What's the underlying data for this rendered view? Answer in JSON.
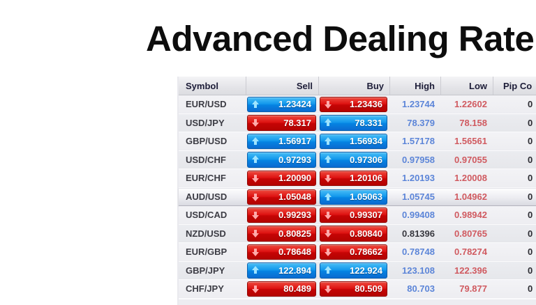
{
  "page": {
    "title": "Advanced Dealing Rate",
    "background": "#ffffff"
  },
  "table": {
    "headers": {
      "symbol": "Symbol",
      "sell": "Sell",
      "buy": "Buy",
      "high": "High",
      "low": "Low",
      "pip": "Pip Co"
    },
    "rows": [
      {
        "symbol": "EUR/USD",
        "sell": "1.23424",
        "sell_dir": "up",
        "buy": "1.23436",
        "buy_dir": "down",
        "high": "1.23744",
        "high_variant": "blue",
        "low": "1.22602",
        "pip": "0",
        "highlighted": false
      },
      {
        "symbol": "USD/JPY",
        "sell": "78.317",
        "sell_dir": "down",
        "buy": "78.331",
        "buy_dir": "up",
        "high": "78.379",
        "high_variant": "blue",
        "low": "78.158",
        "pip": "0",
        "highlighted": false
      },
      {
        "symbol": "GBP/USD",
        "sell": "1.56917",
        "sell_dir": "up",
        "buy": "1.56934",
        "buy_dir": "up",
        "high": "1.57178",
        "high_variant": "blue",
        "low": "1.56561",
        "pip": "0",
        "highlighted": false
      },
      {
        "symbol": "USD/CHF",
        "sell": "0.97293",
        "sell_dir": "up",
        "buy": "0.97306",
        "buy_dir": "up",
        "high": "0.97958",
        "high_variant": "blue",
        "low": "0.97055",
        "pip": "0",
        "highlighted": false
      },
      {
        "symbol": "EUR/CHF",
        "sell": "1.20090",
        "sell_dir": "down",
        "buy": "1.20106",
        "buy_dir": "down",
        "high": "1.20193",
        "high_variant": "blue",
        "low": "1.20008",
        "pip": "0",
        "highlighted": false
      },
      {
        "symbol": "AUD/USD",
        "sell": "1.05048",
        "sell_dir": "down",
        "buy": "1.05063",
        "buy_dir": "up",
        "high": "1.05745",
        "high_variant": "blue",
        "low": "1.04962",
        "pip": "0",
        "highlighted": true
      },
      {
        "symbol": "USD/CAD",
        "sell": "0.99293",
        "sell_dir": "down",
        "buy": "0.99307",
        "buy_dir": "down",
        "high": "0.99408",
        "high_variant": "blue",
        "low": "0.98942",
        "pip": "0",
        "highlighted": false
      },
      {
        "symbol": "NZD/USD",
        "sell": "0.80825",
        "sell_dir": "down",
        "buy": "0.80840",
        "buy_dir": "down",
        "high": "0.81396",
        "high_variant": "dark",
        "low": "0.80765",
        "pip": "0",
        "highlighted": false
      },
      {
        "symbol": "EUR/GBP",
        "sell": "0.78648",
        "sell_dir": "down",
        "buy": "0.78662",
        "buy_dir": "down",
        "high": "0.78748",
        "high_variant": "blue",
        "low": "0.78274",
        "pip": "0",
        "highlighted": false
      },
      {
        "symbol": "GBP/JPY",
        "sell": "122.894",
        "sell_dir": "up",
        "buy": "122.924",
        "buy_dir": "up",
        "high": "123.108",
        "high_variant": "blue",
        "low": "122.396",
        "pip": "0",
        "highlighted": false
      },
      {
        "symbol": "CHF/JPY",
        "sell": "80.489",
        "sell_dir": "down",
        "buy": "80.509",
        "buy_dir": "down",
        "high": "80.703",
        "high_variant": "blue",
        "low": "79.877",
        "pip": "0",
        "highlighted": false
      }
    ]
  },
  "colors": {
    "up_top": "#47bdf6",
    "up_mid1": "#1398ec",
    "up_mid2": "#0583e2",
    "up_bottom": "#0b6ad0",
    "up_border": "#0760ae",
    "up_arrow": "#9fe4ff",
    "down_top": "#ed493d",
    "down_mid1": "#de1312",
    "down_mid2": "#c50505",
    "down_bottom": "#b40301",
    "down_border": "#930600",
    "down_arrow": "#ffaaaa",
    "high_text": "#5c85d8",
    "low_text": "#d05a60",
    "dark_value_text": "#38383f",
    "header_text": "#1d1d38",
    "symbol_text": "#3c3c44",
    "row_light": "#f3f3f6",
    "row_dark": "#e6e7eb"
  }
}
